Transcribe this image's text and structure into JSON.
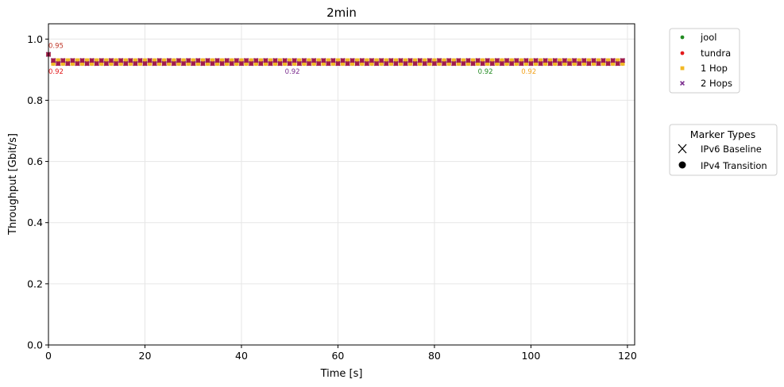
{
  "chart_data": {
    "type": "scatter",
    "title": "2min",
    "xlabel": "Time [s]",
    "ylabel": "Throughput [Gbit/s]",
    "xlim": [
      0,
      121.5
    ],
    "ylim": [
      0,
      1.05
    ],
    "xticks": [
      0,
      20,
      40,
      60,
      80,
      100,
      120
    ],
    "xtick_labels": [
      "0",
      "20",
      "40",
      "60",
      "80",
      "100",
      "120"
    ],
    "yticks": [
      0,
      0.2,
      0.4,
      0.6,
      0.8,
      1.0
    ],
    "ytick_labels": [
      "0.0",
      "0.2",
      "0.4",
      "0.6",
      "0.8",
      "1.0"
    ],
    "grid": true,
    "x_start": 0,
    "x_end": 119,
    "x_step": 1,
    "series": [
      {
        "name": "jool",
        "color": "#228b22",
        "marker": "circle",
        "first_value": 0.95,
        "high": 0.93,
        "low": 0.92,
        "high_phase": 0
      },
      {
        "name": "tundra",
        "color": "#e31a1c",
        "marker": "circle",
        "first_value": 0.95,
        "high": 0.93,
        "low": 0.92,
        "high_phase": 1
      },
      {
        "name": "1 Hop",
        "color": "#f2b824",
        "marker": "square",
        "first_value": 0.95,
        "high": 0.93,
        "low": 0.92,
        "high_phase": 0
      },
      {
        "name": "2 Hops",
        "color": "#7b2d8e",
        "marker": "x",
        "first_value": 0.95,
        "high": 0.93,
        "low": 0.92,
        "high_phase": 1
      },
      {
        "name": "",
        "color": "#a01c4c",
        "marker": "square",
        "first_value": 0.95,
        "high": 0.93,
        "low": 0.92,
        "high_phase": 1
      }
    ],
    "annotations": [
      {
        "text": "0.95",
        "x": 0,
        "y": 0.95,
        "color": "#c0392b",
        "position": "above"
      },
      {
        "text": "0.92",
        "x": 0,
        "y": 0.92,
        "color": "#e31a1c",
        "position": "below"
      },
      {
        "text": "0.92",
        "x": 49,
        "y": 0.92,
        "color": "#7b2d8e",
        "position": "below"
      },
      {
        "text": "0.92",
        "x": 89,
        "y": 0.92,
        "color": "#228b22",
        "position": "below"
      },
      {
        "text": "0.92",
        "x": 98,
        "y": 0.92,
        "color": "#f2a21c",
        "position": "below"
      }
    ],
    "legend": {
      "placement": "outside-right",
      "entries": [
        {
          "label": "jool",
          "color": "#228b22",
          "marker": "circle"
        },
        {
          "label": "tundra",
          "color": "#e31a1c",
          "marker": "circle"
        },
        {
          "label": "1 Hop",
          "color": "#f2b824",
          "marker": "square"
        },
        {
          "label": "2 Hops",
          "color": "#7b2d8e",
          "marker": "x"
        }
      ]
    },
    "marker_legend": {
      "title": "Marker Types",
      "entries": [
        {
          "label": "IPv6 Baseline",
          "marker": "x"
        },
        {
          "label": "IPv4 Transition",
          "marker": "circle"
        }
      ]
    }
  }
}
